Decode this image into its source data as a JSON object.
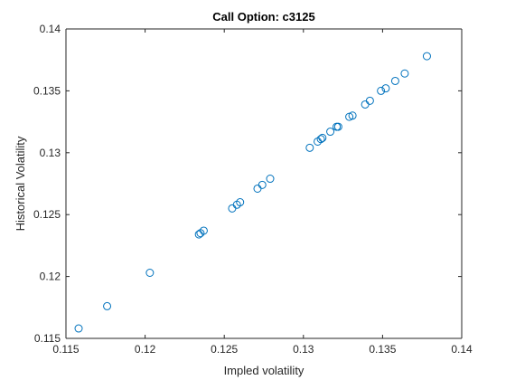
{
  "chart_data": {
    "type": "scatter",
    "title": "Call Option: c3125",
    "xlabel": "Impled volatility",
    "ylabel": "Historical Volatility",
    "xlim": [
      0.115,
      0.14
    ],
    "ylim": [
      0.115,
      0.14
    ],
    "xticks": [
      "0.115",
      "0.12",
      "0.125",
      "0.13",
      "0.135",
      "0.14"
    ],
    "yticks": [
      "0.115",
      "0.12",
      "0.125",
      "0.13",
      "0.135",
      "0.14"
    ],
    "grid": false,
    "marker_color": "#0072BD",
    "points": [
      [
        0.1158,
        0.1158
      ],
      [
        0.1176,
        0.1176
      ],
      [
        0.1203,
        0.1203
      ],
      [
        0.1234,
        0.1234
      ],
      [
        0.1235,
        0.1235
      ],
      [
        0.1237,
        0.1237
      ],
      [
        0.1255,
        0.1255
      ],
      [
        0.1258,
        0.1258
      ],
      [
        0.126,
        0.126
      ],
      [
        0.1271,
        0.1271
      ],
      [
        0.1274,
        0.1274
      ],
      [
        0.1279,
        0.1279
      ],
      [
        0.1304,
        0.1304
      ],
      [
        0.1309,
        0.1309
      ],
      [
        0.1311,
        0.1311
      ],
      [
        0.1312,
        0.1312
      ],
      [
        0.1317,
        0.1317
      ],
      [
        0.1321,
        0.1321
      ],
      [
        0.1322,
        0.1321
      ],
      [
        0.1329,
        0.1329
      ],
      [
        0.1331,
        0.133
      ],
      [
        0.1339,
        0.1339
      ],
      [
        0.1342,
        0.1342
      ],
      [
        0.1349,
        0.135
      ],
      [
        0.1352,
        0.1352
      ],
      [
        0.1358,
        0.1358
      ],
      [
        0.1364,
        0.1364
      ],
      [
        0.1378,
        0.1378
      ]
    ]
  }
}
